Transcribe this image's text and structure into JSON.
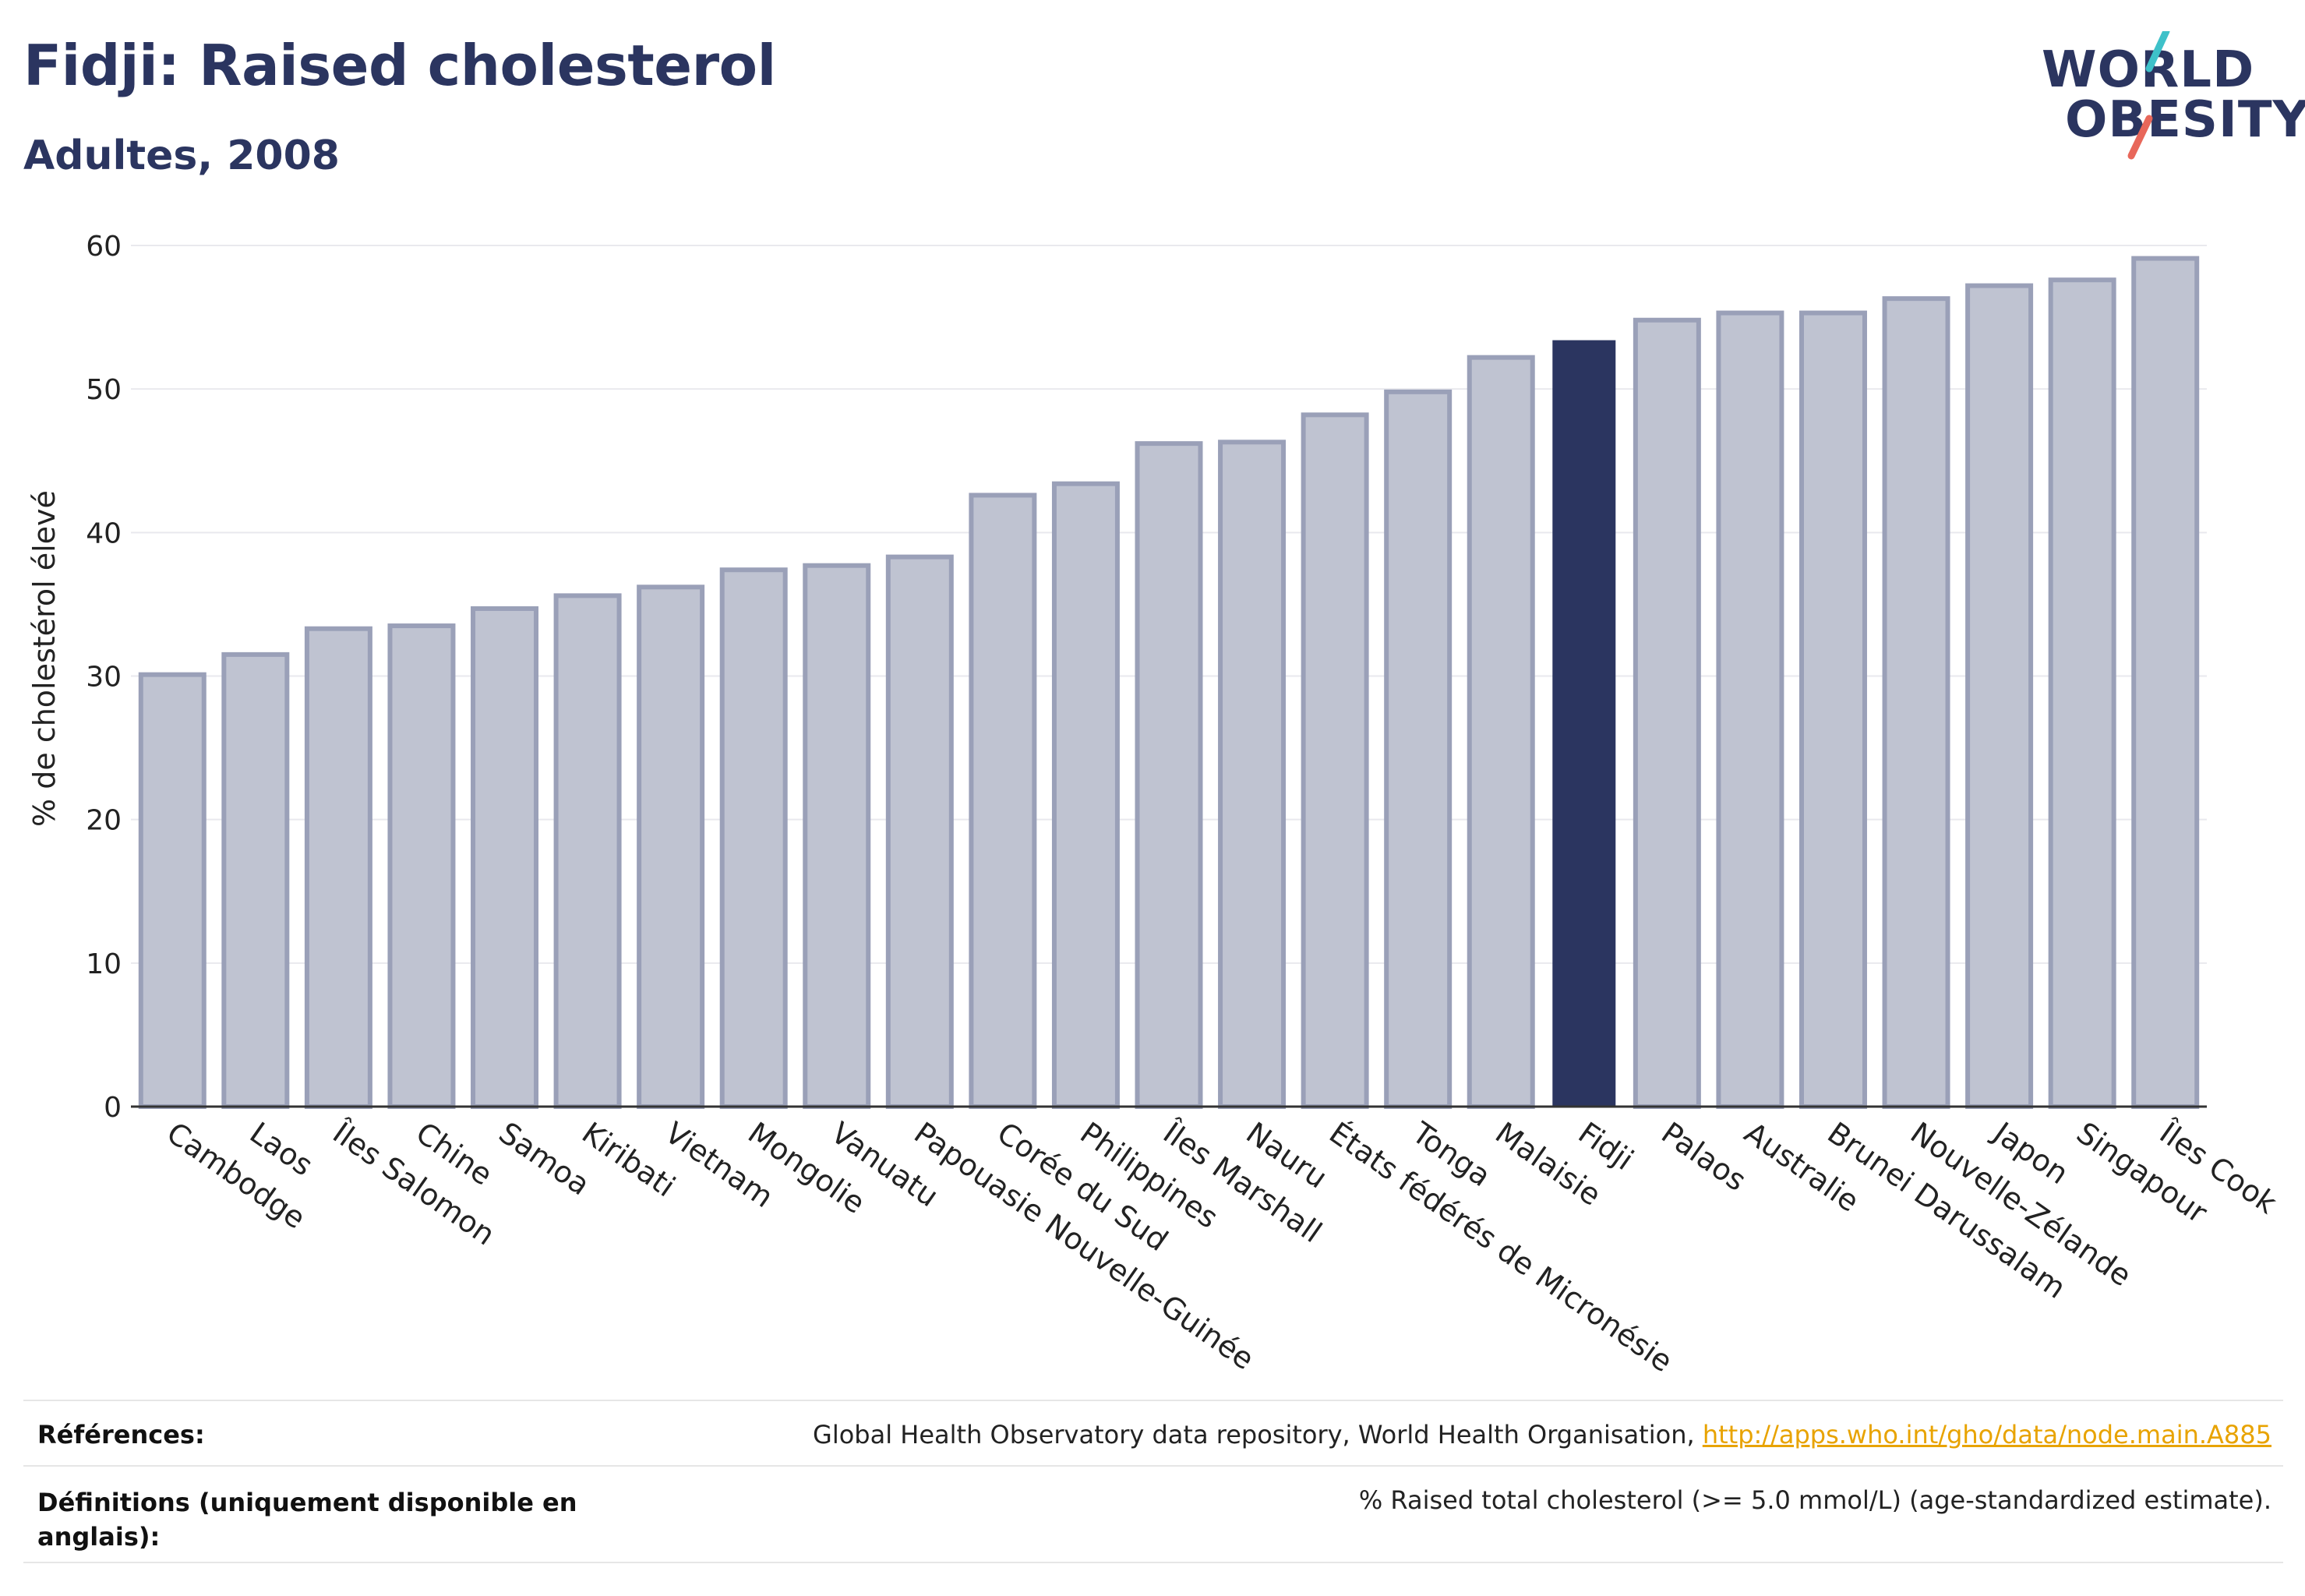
{
  "header": {
    "title": "Fidji: Raised cholesterol",
    "subtitle": "Adultes, 2008"
  },
  "logo": {
    "line1": "WORLD",
    "line2": "OBESITY",
    "slash_colors": [
      "#3ec1c9",
      "#e8675a"
    ]
  },
  "colors": {
    "bar": "#bfc3d1",
    "bar_border": "#9aa0b8",
    "highlight": "#2b3560",
    "grid": "#e9e9ee",
    "axis": "#333333",
    "link": "#e8a300"
  },
  "chart_data": {
    "type": "bar",
    "title": "",
    "xlabel": "",
    "ylabel": "% de cholestérol élevé",
    "ylim": [
      0,
      60
    ],
    "yticks": [
      0,
      10,
      20,
      30,
      40,
      50,
      60
    ],
    "grid": true,
    "highlight": "Fidji",
    "categories": [
      "Cambodge",
      "Laos",
      "Îles Salomon",
      "Chine",
      "Samoa",
      "Kiribati",
      "Vietnam",
      "Mongolie",
      "Vanuatu",
      "Papouasie Nouvelle-Guinée",
      "Corée du Sud",
      "Philippines",
      "Îles Marshall",
      "Nauru",
      "États fédérés de Micronésie",
      "Tonga",
      "Malaisie",
      "Fidji",
      "Palaos",
      "Australie",
      "Brunei Darussalam",
      "Nouvelle-Zélande",
      "Japon",
      "Singapour",
      "Îles Cook"
    ],
    "values": [
      30.1,
      31.5,
      33.3,
      33.5,
      34.7,
      35.6,
      36.2,
      37.4,
      37.7,
      38.3,
      42.6,
      43.4,
      46.2,
      46.3,
      48.2,
      49.8,
      52.2,
      53.4,
      54.8,
      55.3,
      55.3,
      56.3,
      57.2,
      57.6,
      59.1
    ]
  },
  "footer": {
    "references_label": "Références:",
    "references_text": "Global Health Observatory data repository, World Health Organisation, ",
    "references_link": "http://apps.who.int/gho/data/node.main.A885",
    "definitions_label_1": "Définitions (uniquement disponible en",
    "definitions_label_2": "anglais):",
    "definitions_text": "% Raised total cholesterol (>= 5.0 mmol/L) (age-standardized estimate)."
  }
}
